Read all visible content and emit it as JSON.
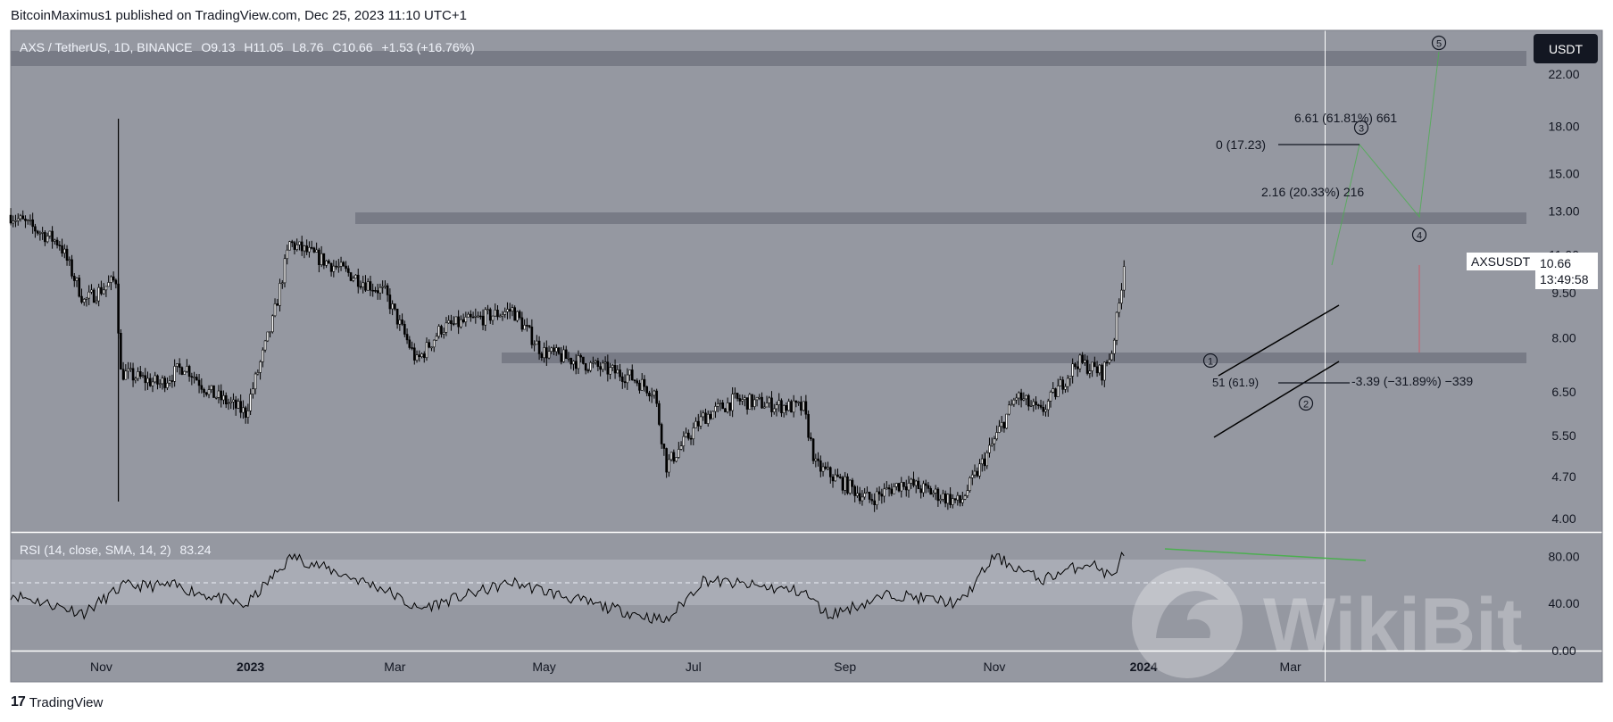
{
  "attribution": "BitcoinMaximus1 published on TradingView.com, Dec 25, 2023 11:10 UTC+1",
  "brand": {
    "logo": "17",
    "name": "TradingView"
  },
  "watermark": "WikiBit",
  "header": {
    "symbol": "AXS / TetherUS, 1D, BINANCE",
    "open_label": "O",
    "open": "9.13",
    "high_label": "H",
    "high": "11.05",
    "low_label": "L",
    "low": "8.76",
    "close_label": "C",
    "close": "10.66",
    "change": "+1.53 (+16.76%)"
  },
  "price_axis": {
    "currency": "USDT",
    "ticks": [
      "22.00",
      "18.00",
      "15.00",
      "13.00",
      "11.00",
      "9.50",
      "8.00",
      "6.50",
      "5.50",
      "4.70",
      "4.00"
    ],
    "last_label": "AXSUSDT",
    "last_price": "10.66",
    "countdown": "13:49:58"
  },
  "rsi": {
    "label": "RSI (14, close, SMA, 14, 2)",
    "value": "83.24",
    "ticks": [
      "80.00",
      "40.00",
      "0.00"
    ]
  },
  "time_axis": {
    "labels": [
      "Nov",
      "2023",
      "Mar",
      "May",
      "Jul",
      "Sep",
      "Nov",
      "2024",
      "Mar"
    ]
  },
  "annotations": {
    "fib_a": "6.61 (61.81%) 661",
    "fib_b": "0 (17.23)",
    "fib_c": "2.16 (20.33%) 216",
    "fib_d": "-3.39 (−31.89%) −339",
    "fib_e": "51 (61.9)",
    "waves": [
      "1",
      "2",
      "3",
      "4",
      "5"
    ]
  },
  "colors": {
    "background": "#9598a1",
    "candle": "#000000",
    "zone": "#787b86",
    "rsi_band": "#b2b5be",
    "green": "#4caf50",
    "red": "#f23645",
    "label_bg": "#131722"
  },
  "chart_data": {
    "type": "candlestick",
    "title": "AXS / TetherUS, 1D, BINANCE",
    "y_scale": "log",
    "ylim": [
      3.8,
      26
    ],
    "x_range": [
      "2022-09-25",
      "2024-03-15"
    ],
    "resistance_zones": [
      [
        23.7,
        25.0
      ],
      [
        12.7,
        13.2
      ],
      [
        7.0,
        7.3
      ]
    ],
    "anchor_prices": [
      {
        "date": "2022-09-25",
        "close": 12.8
      },
      {
        "date": "2022-10-15",
        "close": 11.5
      },
      {
        "date": "2022-10-25",
        "close": 9.2
      },
      {
        "date": "2022-11-07",
        "close": 10.0
      },
      {
        "date": "2022-11-09",
        "close": 7.0
      },
      {
        "date": "2022-11-25",
        "close": 6.7
      },
      {
        "date": "2022-12-05",
        "close": 7.2
      },
      {
        "date": "2022-12-15",
        "close": 6.5
      },
      {
        "date": "2022-12-30",
        "close": 6.0
      },
      {
        "date": "2023-01-10",
        "close": 8.5
      },
      {
        "date": "2023-01-17",
        "close": 11.5
      },
      {
        "date": "2023-02-05",
        "close": 10.5
      },
      {
        "date": "2023-02-25",
        "close": 9.5
      },
      {
        "date": "2023-03-10",
        "close": 7.3
      },
      {
        "date": "2023-03-20",
        "close": 8.3
      },
      {
        "date": "2023-04-18",
        "close": 8.9
      },
      {
        "date": "2023-04-30",
        "close": 7.6
      },
      {
        "date": "2023-06-05",
        "close": 6.9
      },
      {
        "date": "2023-06-15",
        "close": 6.5
      },
      {
        "date": "2023-06-20",
        "close": 4.9
      },
      {
        "date": "2023-07-05",
        "close": 5.9
      },
      {
        "date": "2023-07-18",
        "close": 6.3
      },
      {
        "date": "2023-08-15",
        "close": 6.1
      },
      {
        "date": "2023-08-20",
        "close": 4.9
      },
      {
        "date": "2023-09-11",
        "close": 4.3
      },
      {
        "date": "2023-09-25",
        "close": 4.6
      },
      {
        "date": "2023-10-18",
        "close": 4.25
      },
      {
        "date": "2023-10-30",
        "close": 5.2
      },
      {
        "date": "2023-11-10",
        "close": 6.4
      },
      {
        "date": "2023-11-20",
        "close": 6.0
      },
      {
        "date": "2023-12-05",
        "close": 7.3
      },
      {
        "date": "2023-12-15",
        "close": 7.0
      },
      {
        "date": "2023-12-19",
        "close": 7.6
      },
      {
        "date": "2023-12-22",
        "close": 9.1
      },
      {
        "date": "2023-12-24",
        "close": 10.66
      }
    ],
    "rsi_series": [
      {
        "date": "2022-09-25",
        "value": 48
      },
      {
        "date": "2022-10-25",
        "value": 32
      },
      {
        "date": "2022-11-10",
        "value": 55
      },
      {
        "date": "2022-12-01",
        "value": 55
      },
      {
        "date": "2022-12-30",
        "value": 38
      },
      {
        "date": "2023-01-18",
        "value": 80
      },
      {
        "date": "2023-02-25",
        "value": 52
      },
      {
        "date": "2023-03-10",
        "value": 35
      },
      {
        "date": "2023-04-18",
        "value": 58
      },
      {
        "date": "2023-05-20",
        "value": 40
      },
      {
        "date": "2023-06-20",
        "value": 25
      },
      {
        "date": "2023-07-05",
        "value": 60
      },
      {
        "date": "2023-08-15",
        "value": 50
      },
      {
        "date": "2023-08-25",
        "value": 30
      },
      {
        "date": "2023-09-20",
        "value": 48
      },
      {
        "date": "2023-10-18",
        "value": 40
      },
      {
        "date": "2023-11-01",
        "value": 80
      },
      {
        "date": "2023-11-20",
        "value": 60
      },
      {
        "date": "2023-12-10",
        "value": 75
      },
      {
        "date": "2023-12-19",
        "value": 62
      },
      {
        "date": "2023-12-24",
        "value": 83.24
      }
    ]
  }
}
